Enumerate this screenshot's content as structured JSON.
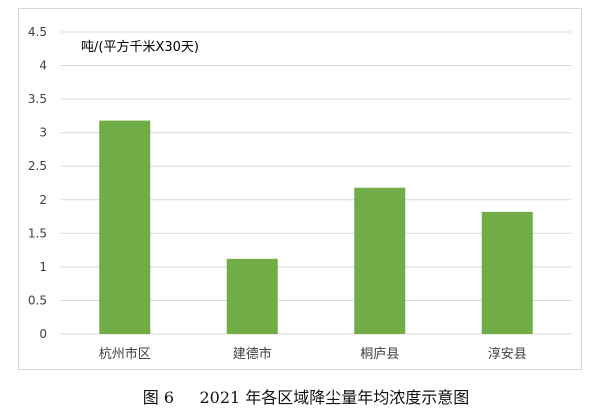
{
  "chart_data": {
    "type": "bar",
    "title": "",
    "ylabel": "吨/(平方千米X30天)",
    "xlabel": "",
    "categories": [
      "杭州市区",
      "建德市",
      "桐庐县",
      "淳安县"
    ],
    "values": [
      3.18,
      1.12,
      2.18,
      1.82
    ],
    "ylim": [
      0,
      4.5
    ],
    "yticks": [
      "0",
      "0.5",
      "1",
      "1.5",
      "2",
      "2.5",
      "3",
      "3.5",
      "4",
      "4.5"
    ],
    "grid": true,
    "legend": "none",
    "bar_color": "#70AD47",
    "grid_color": "#D9D9D9",
    "text_color": "#404040"
  },
  "caption": {
    "figure_label": "图 6",
    "text": "2021 年各区域降尘量年均浓度示意图"
  }
}
